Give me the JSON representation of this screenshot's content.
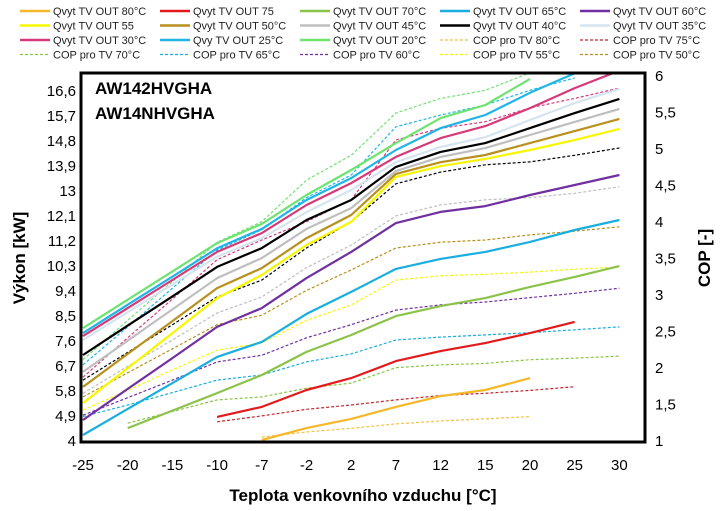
{
  "chart_data": {
    "type": "line",
    "models": [
      "AW142HVGHA",
      "AW14NHVGHA"
    ],
    "xlabel": "Teplota venkovního vzduchu [°C]",
    "ylabel": "Výkon [kW]",
    "y2label": "COP [-]",
    "categories": [
      "-25",
      "-20",
      "-15",
      "-10",
      "-7",
      "-2",
      "2",
      "7",
      "12",
      "15",
      "20",
      "25",
      "30"
    ],
    "ylim": [
      4,
      17.14
    ],
    "yticks": [
      "4",
      "4,9",
      "5,8",
      "6,7",
      "7,6",
      "8,5",
      "9,4",
      "10,3",
      "11,2",
      "12,1",
      "13",
      "13,9",
      "14,8",
      "15,7",
      "16,6"
    ],
    "y2lim": [
      1,
      6
    ],
    "y2ticks": [
      "1",
      "1,5",
      "2",
      "2,5",
      "3",
      "3,5",
      "4",
      "4,5",
      "5",
      "5,5",
      "6"
    ],
    "grid": false,
    "legend_placement": "top",
    "series": [
      {
        "name": "Qvyt TV OUT 80°C",
        "axis": "left",
        "dash": false,
        "color": "#f5b82a",
        "values": [
          null,
          null,
          null,
          null,
          4.0,
          4.43,
          4.76,
          5.19,
          5.58,
          5.8,
          6.23,
          null,
          null
        ]
      },
      {
        "name": "Qvyt TV OUT 75",
        "axis": "left",
        "dash": false,
        "color": "#e31a1c",
        "values": [
          null,
          null,
          null,
          4.83,
          5.19,
          5.8,
          6.23,
          6.84,
          7.2,
          7.49,
          7.85,
          8.25,
          null
        ]
      },
      {
        "name": "Qvyt TV OUT 70°C",
        "axis": "left",
        "dash": false,
        "color": "#8bc34a",
        "values": [
          null,
          4.43,
          5.06,
          5.69,
          6.34,
          7.17,
          7.78,
          8.46,
          8.82,
          9.11,
          9.51,
          9.87,
          10.26
        ]
      },
      {
        "name": "Qvyt TV OUT 65°C",
        "axis": "left",
        "dash": false,
        "color": "#1aaee0",
        "values": [
          4.18,
          5.12,
          6.05,
          6.99,
          7.53,
          8.54,
          9.33,
          10.16,
          10.52,
          10.77,
          11.13,
          11.56,
          11.92
        ]
      },
      {
        "name": "Qvyt TV OUT 60°C",
        "axis": "left",
        "dash": false,
        "color": "#7030a0",
        "values": [
          4.72,
          5.84,
          6.95,
          8.07,
          8.75,
          9.83,
          10.77,
          11.81,
          12.21,
          12.42,
          12.82,
          13.18,
          13.54
        ]
      },
      {
        "name": "Qvyt TV OUT 55",
        "axis": "left",
        "dash": false,
        "color": "#f7f700",
        "values": [
          5.33,
          6.59,
          7.85,
          9.11,
          9.94,
          11.02,
          11.85,
          13.47,
          13.86,
          14.12,
          14.44,
          14.8,
          15.2
        ]
      },
      {
        "name": "Qvyt TV OUT 50°C",
        "axis": "left",
        "dash": false,
        "color": "#b8901e",
        "values": [
          5.91,
          7.1,
          8.28,
          9.47,
          10.19,
          11.27,
          12.1,
          13.58,
          14.0,
          14.26,
          14.69,
          15.12,
          15.56
        ]
      },
      {
        "name": "Qvyt TV OUT 45°C",
        "axis": "left",
        "dash": false,
        "color": "#bfbfbf",
        "values": [
          6.45,
          7.58,
          8.7,
          9.83,
          10.55,
          11.6,
          12.35,
          13.68,
          14.19,
          14.51,
          14.98,
          15.45,
          15.92
        ]
      },
      {
        "name": "Qvyt TV OUT 40°C",
        "axis": "left",
        "dash": false,
        "color": "#000000",
        "values": [
          7.06,
          8.12,
          9.17,
          10.23,
          10.91,
          11.92,
          12.64,
          13.83,
          14.37,
          14.69,
          15.23,
          15.77,
          16.28
        ]
      },
      {
        "name": "Qvyt TV OUT 35°C",
        "axis": "left",
        "dash": false,
        "color": "#d6e4f0",
        "values": [
          7.6,
          8.6,
          9.6,
          10.6,
          11.27,
          12.2,
          13.0,
          14.0,
          14.55,
          14.9,
          15.52,
          16.13,
          16.64
        ]
      },
      {
        "name": "Qvyt TV OUT 30°C",
        "axis": "left",
        "dash": false,
        "color": "#d63a7a",
        "values": [
          7.74,
          8.75,
          9.76,
          10.77,
          11.45,
          12.46,
          13.25,
          14.19,
          14.87,
          15.3,
          15.95,
          16.67,
          17.3
        ]
      },
      {
        "name": "Qvy TV OUT 25°C",
        "axis": "left",
        "dash": false,
        "color": "#1fb5e6",
        "values": [
          7.85,
          8.87,
          9.88,
          10.9,
          11.6,
          12.64,
          13.43,
          14.44,
          15.23,
          15.7,
          16.5,
          17.2,
          null
        ]
      },
      {
        "name": "Qvyt TV OUT 20°C",
        "axis": "left",
        "dash": false,
        "color": "#6fe36f",
        "values": [
          8.03,
          9.05,
          10.07,
          11.09,
          11.78,
          12.82,
          13.72,
          14.69,
          15.59,
          16.06,
          17.0,
          null,
          null
        ]
      },
      {
        "name": "COP pro TV 80°C",
        "axis": "right",
        "dash": true,
        "color": "#f5c242",
        "values": [
          null,
          null,
          null,
          null,
          1.04,
          1.11,
          1.16,
          1.22,
          1.26,
          1.29,
          1.32,
          null,
          null
        ]
      },
      {
        "name": "COP pro TV 75°C",
        "axis": "right",
        "dash": true,
        "color": "#c0282d",
        "values": [
          null,
          null,
          null,
          1.25,
          1.33,
          1.42,
          1.48,
          1.55,
          1.61,
          1.64,
          1.68,
          1.73,
          null
        ]
      },
      {
        "name": "COP pro TV 70°C",
        "axis": "right",
        "dash": true,
        "color": "#8bc34a",
        "values": [
          null,
          1.23,
          1.39,
          1.55,
          1.59,
          1.71,
          1.78,
          1.99,
          2.03,
          2.05,
          2.1,
          2.12,
          2.15
        ]
      },
      {
        "name": "COP pro TV 65°C",
        "axis": "right",
        "dash": true,
        "color": "#1aaee0",
        "values": [
          1.32,
          1.48,
          1.65,
          1.82,
          1.89,
          2.07,
          2.18,
          2.37,
          2.41,
          2.44,
          2.47,
          2.51,
          2.55
        ]
      },
      {
        "name": "COP pro TV 60°C",
        "axis": "right",
        "dash": true,
        "color": "#7030a0",
        "values": [
          1.34,
          1.58,
          1.82,
          2.07,
          2.16,
          2.4,
          2.58,
          2.78,
          2.85,
          2.89,
          2.95,
          3.01,
          3.08
        ]
      },
      {
        "name": "COP pro TV 55°C",
        "axis": "right",
        "dash": true,
        "color": "#f7f700",
        "values": [
          1.41,
          1.68,
          1.96,
          2.23,
          2.33,
          2.64,
          2.85,
          3.19,
          3.25,
          3.27,
          3.3,
          3.34,
          3.37
        ]
      },
      {
        "name": "COP pro TV 50°C",
        "axis": "right",
        "dash": true,
        "color": "#b8901e",
        "values": [
          1.59,
          1.92,
          2.25,
          2.58,
          2.71,
          3.05,
          3.33,
          3.63,
          3.71,
          3.74,
          3.81,
          3.86,
          3.92
        ]
      },
      {
        "axis": "right",
        "dash": true,
        "color": "#bfbfbf",
        "values": [
          1.64,
          2.01,
          2.37,
          2.74,
          2.96,
          3.36,
          3.67,
          4.07,
          4.22,
          4.29,
          4.32,
          4.38,
          4.47
        ]
      },
      {
        "axis": "right",
        "dash": true,
        "color": "#000000",
        "values": [
          1.82,
          2.2,
          2.58,
          2.96,
          3.19,
          3.63,
          3.99,
          4.51,
          4.67,
          4.77,
          4.81,
          4.9,
          5.0
        ]
      },
      {
        "axis": "right",
        "dash": true,
        "color": "#d63a7a",
        "values": [
          1.86,
          2.4,
          2.93,
          3.47,
          3.74,
          3.99,
          4.29,
          5.11,
          5.27,
          5.36,
          5.55,
          5.68,
          5.82
        ]
      },
      {
        "axis": "right",
        "dash": true,
        "color": "#1fb5e6",
        "values": [
          2.03,
          2.55,
          3.08,
          3.6,
          3.88,
          4.32,
          4.63,
          5.29,
          5.45,
          5.59,
          5.79,
          5.96,
          null
        ]
      },
      {
        "axis": "right",
        "dash": true,
        "color": "#6fe36f",
        "values": [
          2.1,
          2.64,
          3.17,
          3.71,
          3.99,
          4.56,
          4.9,
          5.48,
          5.68,
          5.79,
          6.03,
          null,
          null
        ]
      }
    ]
  }
}
